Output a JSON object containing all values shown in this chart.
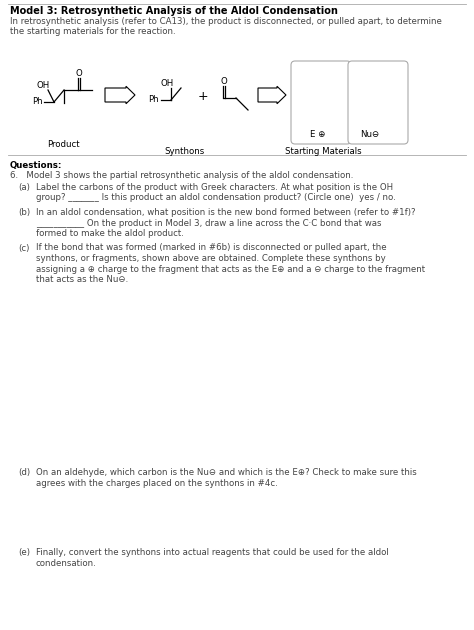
{
  "title_bold": "Model 3: Retrosynthetic Analysis of the Aldol Condensation",
  "intro_line1": "In retrosynthetic analysis (refer to CA13), the product is disconnected, or pulled apart, to determine",
  "intro_line2": "the starting materials for the reaction.",
  "product_label": "Product",
  "synthons_label": "Synthons",
  "starting_materials_label": "Starting Materials",
  "e_label": "E ⊕",
  "nu_label": "Nu⊖",
  "questions_header": "Questions:",
  "q6_intro": "6.   Model 3 shows the partial retrosynthetic analysis of the aldol condensation.",
  "qa1": "(a)   Label the carbons of the product with Greek characters. At what position is the OH",
  "qa2": "      group? _______ Is this product an aldol condensation product? (Circle one)  yes / no.",
  "qb1": "(b)   In an aldol condensation, what position is the new bond formed between (refer to #1f)?",
  "qb2": "      ___________ On the product in Model 3, draw a line across the C·C bond that was",
  "qb3": "      formed to make the aldol product.",
  "qc1": "(c)   If the bond that was formed (marked in #6b) is disconnected or pulled apart, the",
  "qc2": "      synthons, or fragments, shown above are obtained. Complete these synthons by",
  "qc3": "      assigning a ⊕ charge to the fragment that acts as the E⊕ and a ⊖ charge to the fragment",
  "qc4": "      that acts as the Nu⊖.",
  "qd1": "(d)   On an aldehyde, which carbon is the Nu⊖ and which is the E⊕? Check to make sure this",
  "qd2": "      agrees with the charges placed on the synthons in #4c.",
  "qe1": "(e)   Finally, convert the synthons into actual reagents that could be used for the aldol",
  "qe2": "      condensation.",
  "bg_color": "#ffffff",
  "text_color": "#444444",
  "black": "#000000",
  "gray": "#888888"
}
